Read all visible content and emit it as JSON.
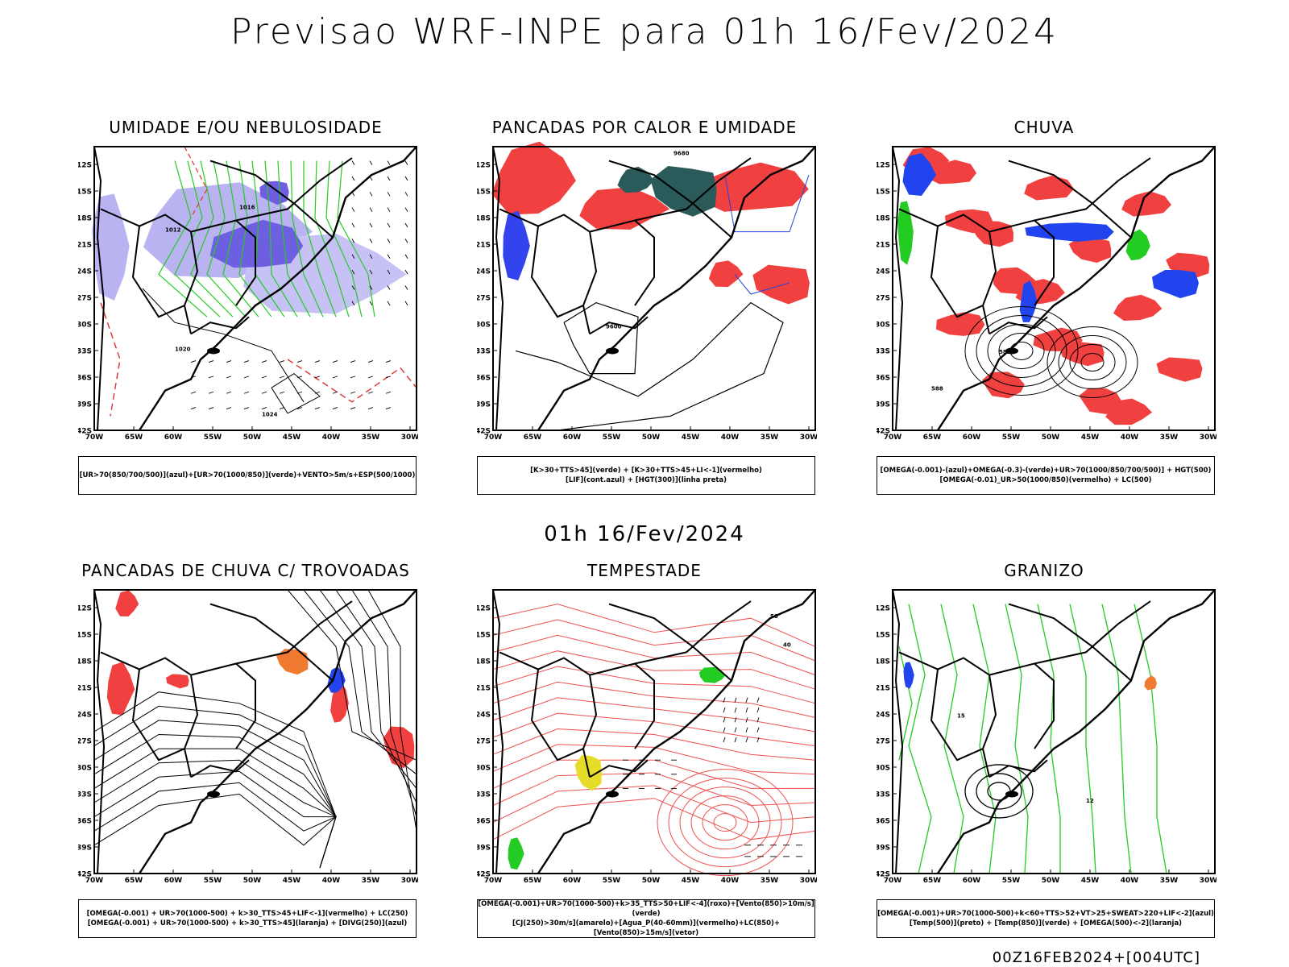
{
  "header": {
    "title": "Previsao WRF-INPE  para 01h 16/Fev/2024"
  },
  "mid_title": "01h 16/Fev/2024",
  "footer": "00Z16FEB2024+[004UTC]",
  "axes": {
    "lat_ticks": [
      "12S",
      "15S",
      "18S",
      "21S",
      "24S",
      "27S",
      "30S",
      "33S",
      "36S",
      "39S",
      "42S"
    ],
    "lon_ticks": [
      "70W",
      "65W",
      "60W",
      "55W",
      "50W",
      "45W",
      "40W",
      "35W",
      "30W"
    ]
  },
  "panels": [
    {
      "title": "UMIDADE E/OU NEBULOSIDADE",
      "legend": [
        "[UR>70(850/700/500)](azul)+[UR>70(1000/850)](verde)+VENTO>5m/s+ESP(500/1000)"
      ],
      "labels": [
        "1016",
        "1012",
        "1020",
        "1024"
      ]
    },
    {
      "title": "PANCADAS POR CALOR E UMIDADE",
      "legend": [
        "[K>30+TTS>45](verde) + [K>30+TTS>45+LI<-1](vermelho)",
        "[LIF](cont.azul) + [HGT(300)](linha preta)"
      ],
      "labels": [
        "9680",
        "9600"
      ]
    },
    {
      "title": "CHUVA",
      "legend": [
        "[OMEGA(-0.001)-(azul)+OMEGA(-0.3)-(verde)+UR>70(1000/850/700/500)] + HGT(500)",
        "[OMEGA(-0.01)_UR>50(1000/850)(vermelho) + LC(500)"
      ],
      "labels": [
        "588",
        "582"
      ]
    },
    {
      "title": "PANCADAS DE CHUVA C/ TROVOADAS",
      "legend": [
        "[OMEGA(-0.001) + UR>70(1000-500) + k>30_TTS>45+LIF<-1](vermelho) + LC(250)",
        "[OMEGA(-0.001) + UR>70(1000-500) + k>30_TTS>45](laranja) + [DIVG(250)](azul)"
      ],
      "labels": []
    },
    {
      "title": "TEMPESTADE",
      "legend": [
        "[OMEGA(-0.001)+UR>70(1000-500)+k>35_TTS>50+LIF<-4](roxo)+[Vento(850)>10m/s](verde)",
        "[CJ(250)>30m/s](amarelo)+[Agua_P(40-60mm)](vermelho)+LC(850)+[Vento(850)>15m/s](vetor)"
      ],
      "labels": [
        "50",
        "40"
      ]
    },
    {
      "title": "GRANIZO",
      "legend": [
        "[OMEGA(-0.001)+UR>70(1000-500)+k<60+TTS>52+VT>25+SWEAT>220+LIF<-2](azul)",
        "[Temp(500)](preto) + [Temp(850)](verde) + [OMEGA(500)<-2](laranja)"
      ],
      "labels": [
        "15",
        "12"
      ]
    }
  ]
}
